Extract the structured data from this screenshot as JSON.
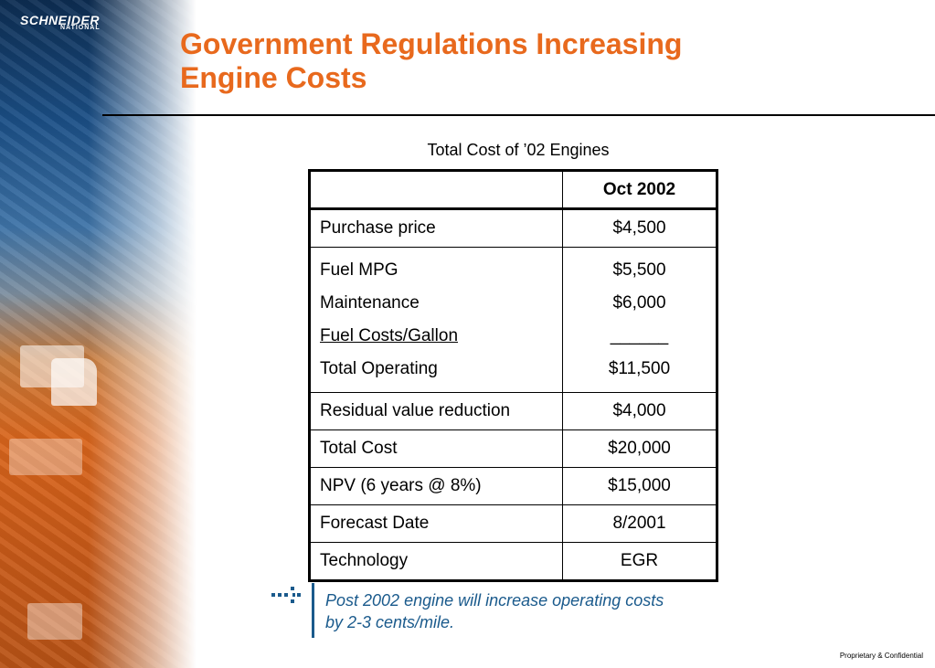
{
  "brand": {
    "logo_text": "SCHNEIDER",
    "logo_sub": "NATIONAL"
  },
  "slide": {
    "title_line1": "Government Regulations Increasing",
    "title_line2": "Engine Costs",
    "caption": "Total Cost of ’02 Engines",
    "note_line1": "Post 2002 engine will increase operating costs",
    "note_line2": "by 2-3 cents/mile.",
    "footer": "Proprietary & Confidential"
  },
  "table": {
    "header": "Oct 2002",
    "purchase": {
      "label": "Purchase price",
      "value": "$4,500"
    },
    "operating": {
      "lines": [
        {
          "label": "Fuel MPG",
          "value": "$5,500"
        },
        {
          "label": "Maintenance",
          "value": "$6,000"
        },
        {
          "label": "Fuel Costs/Gallon",
          "value": "______"
        },
        {
          "label": "Total Operating",
          "value": "$11,500"
        }
      ]
    },
    "rows": [
      {
        "label": "Residual value reduction",
        "value": "$4,000"
      },
      {
        "label": "Total Cost",
        "value": "$20,000"
      },
      {
        "label": "NPV (6 years @ 8%)",
        "value": "$15,000"
      },
      {
        "label": "Forecast Date",
        "value": "8/2001"
      },
      {
        "label": "Technology",
        "value": "EGR"
      }
    ]
  },
  "colors": {
    "title": "#e8691d",
    "note": "#1a5a8c"
  },
  "icons": {
    "bullet": "arrow-bullet-icon"
  }
}
